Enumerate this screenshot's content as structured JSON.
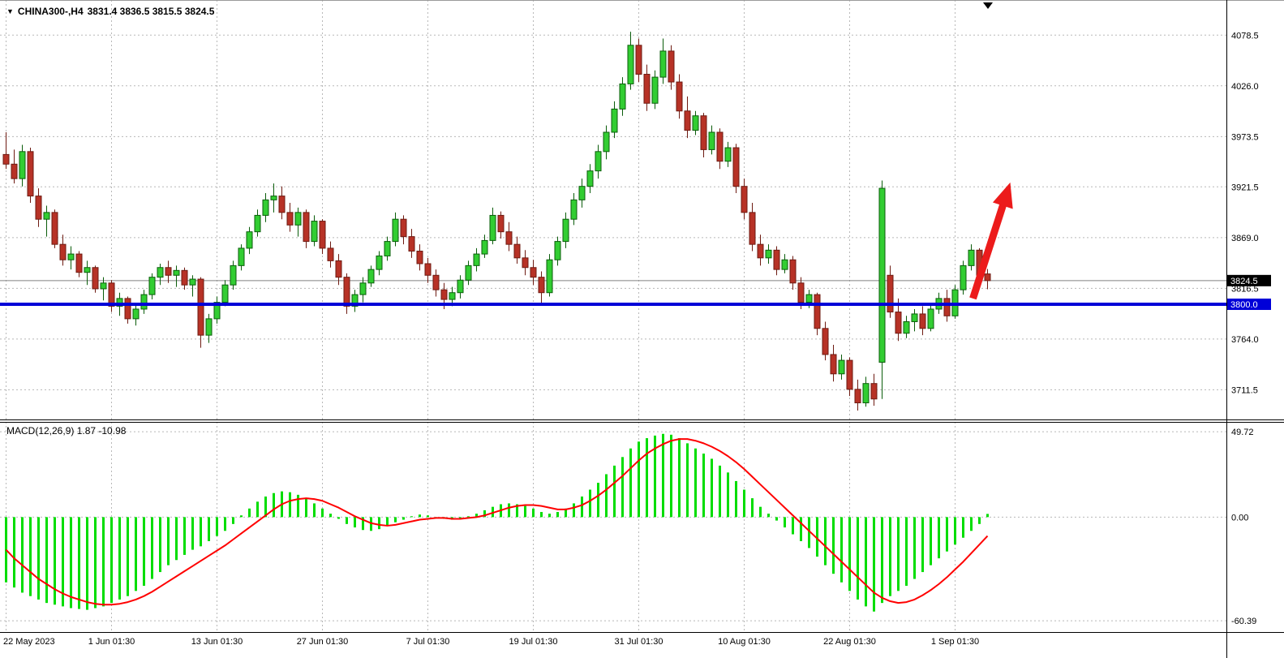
{
  "window": {
    "title": "CHINA300-,H4 chart window"
  },
  "header": {
    "collapse_icon": "▼",
    "symbol": "CHINA300-,H4",
    "ohlc": "3831.4 3836.5 3815.5 3824.5"
  },
  "macd": {
    "label": "MACD(12,26,9) 1.87 -10.98"
  },
  "colors": {
    "background": "#ffffff",
    "bull": "#32cd32",
    "bull_stroke": "#0b5d0b",
    "bear": "#b73226",
    "bear_stroke": "#6e1b12",
    "histogram": "#00dd00",
    "signal": "#ff0000",
    "support_line": "#0000d8",
    "arrow": "#ec1b1b",
    "grid": "#b8b8b8",
    "separator": "#000000",
    "badge_current_bg": "#000000",
    "badge_support_bg": "#0000d8",
    "axis_text": "#000000"
  },
  "axis": {
    "price_ticks": [
      "4078.5",
      "4026.0",
      "3973.5",
      "3921.5",
      "3869.0",
      "3816.5",
      "3764.0",
      "3711.5"
    ],
    "price_tick_values": [
      4078.5,
      4026.0,
      3973.5,
      3921.5,
      3869.0,
      3816.5,
      3764.0,
      3711.5
    ],
    "macd_ticks": [
      "49.72",
      "0.00",
      "-60.39"
    ],
    "macd_tick_values": [
      49.72,
      0,
      -60.39
    ],
    "current_price_badge": "3824.5",
    "support_price_badge": "3800.0"
  },
  "chart_data": [
    {
      "type": "candlestick",
      "title": "CHINA300-,H4",
      "symbol": "CHINA300-",
      "timeframe": "H4",
      "ylim": [
        3685,
        4093
      ],
      "x_labels": [
        "22 May 2023",
        "1 Jun 01:30",
        "13 Jun 01:30",
        "27 Jun 01:30",
        "7 Jul 01:30",
        "19 Jul 01:30",
        "31 Jul 01:30",
        "10 Aug 01:30",
        "22 Aug 01:30",
        "1 Sep 01:30"
      ],
      "x_label_indices": [
        0,
        13,
        26,
        39,
        52,
        65,
        78,
        91,
        104,
        117
      ],
      "candles_ohlc": [
        [
          3955,
          3978,
          3940,
          3945
        ],
        [
          3945,
          3960,
          3925,
          3930
        ],
        [
          3930,
          3965,
          3922,
          3958
        ],
        [
          3958,
          3962,
          3905,
          3912
        ],
        [
          3912,
          3920,
          3880,
          3888
        ],
        [
          3888,
          3902,
          3870,
          3895
        ],
        [
          3895,
          3898,
          3858,
          3862
        ],
        [
          3862,
          3872,
          3840,
          3846
        ],
        [
          3846,
          3860,
          3836,
          3852
        ],
        [
          3852,
          3855,
          3828,
          3833
        ],
        [
          3833,
          3845,
          3820,
          3838
        ],
        [
          3838,
          3840,
          3812,
          3816
        ],
        [
          3816,
          3828,
          3804,
          3822
        ],
        [
          3822,
          3825,
          3792,
          3798
        ],
        [
          3798,
          3812,
          3788,
          3806
        ],
        [
          3806,
          3808,
          3780,
          3785
        ],
        [
          3785,
          3800,
          3778,
          3795
        ],
        [
          3795,
          3815,
          3790,
          3810
        ],
        [
          3810,
          3832,
          3805,
          3828
        ],
        [
          3828,
          3842,
          3820,
          3838
        ],
        [
          3838,
          3845,
          3822,
          3830
        ],
        [
          3830,
          3840,
          3818,
          3835
        ],
        [
          3835,
          3838,
          3815,
          3820
        ],
        [
          3820,
          3830,
          3808,
          3826
        ],
        [
          3826,
          3828,
          3755,
          3768
        ],
        [
          3768,
          3790,
          3760,
          3785
        ],
        [
          3785,
          3808,
          3780,
          3802
        ],
        [
          3802,
          3825,
          3798,
          3820
        ],
        [
          3820,
          3845,
          3815,
          3840
        ],
        [
          3840,
          3862,
          3835,
          3858
        ],
        [
          3858,
          3880,
          3852,
          3875
        ],
        [
          3875,
          3898,
          3870,
          3892
        ],
        [
          3892,
          3915,
          3885,
          3908
        ],
        [
          3908,
          3925,
          3895,
          3912
        ],
        [
          3912,
          3922,
          3888,
          3895
        ],
        [
          3895,
          3905,
          3875,
          3882
        ],
        [
          3882,
          3900,
          3870,
          3895
        ],
        [
          3895,
          3898,
          3858,
          3865
        ],
        [
          3865,
          3892,
          3860,
          3886
        ],
        [
          3886,
          3888,
          3852,
          3858
        ],
        [
          3858,
          3865,
          3838,
          3845
        ],
        [
          3845,
          3852,
          3820,
          3828
        ],
        [
          3828,
          3832,
          3790,
          3798
        ],
        [
          3798,
          3815,
          3792,
          3810
        ],
        [
          3810,
          3828,
          3802,
          3822
        ],
        [
          3822,
          3840,
          3818,
          3836
        ],
        [
          3836,
          3855,
          3830,
          3850
        ],
        [
          3850,
          3870,
          3845,
          3865
        ],
        [
          3865,
          3895,
          3860,
          3888
        ],
        [
          3888,
          3892,
          3862,
          3870
        ],
        [
          3870,
          3878,
          3848,
          3855
        ],
        [
          3855,
          3862,
          3835,
          3842
        ],
        [
          3842,
          3848,
          3822,
          3830
        ],
        [
          3830,
          3836,
          3808,
          3815
        ],
        [
          3815,
          3822,
          3795,
          3805
        ],
        [
          3805,
          3818,
          3798,
          3812
        ],
        [
          3812,
          3830,
          3806,
          3825
        ],
        [
          3825,
          3845,
          3820,
          3840
        ],
        [
          3840,
          3858,
          3834,
          3852
        ],
        [
          3852,
          3872,
          3848,
          3866
        ],
        [
          3866,
          3900,
          3862,
          3892
        ],
        [
          3892,
          3896,
          3868,
          3875
        ],
        [
          3875,
          3885,
          3855,
          3862
        ],
        [
          3862,
          3870,
          3842,
          3848
        ],
        [
          3848,
          3856,
          3830,
          3838
        ],
        [
          3838,
          3846,
          3820,
          3828
        ],
        [
          3828,
          3834,
          3800,
          3812
        ],
        [
          3812,
          3852,
          3808,
          3846
        ],
        [
          3846,
          3870,
          3840,
          3865
        ],
        [
          3865,
          3895,
          3858,
          3888
        ],
        [
          3888,
          3915,
          3882,
          3908
        ],
        [
          3908,
          3930,
          3900,
          3922
        ],
        [
          3922,
          3945,
          3915,
          3938
        ],
        [
          3938,
          3965,
          3930,
          3958
        ],
        [
          3958,
          3985,
          3950,
          3978
        ],
        [
          3978,
          4010,
          3972,
          4002
        ],
        [
          4002,
          4035,
          3995,
          4028
        ],
        [
          4028,
          4082,
          4022,
          4068
        ],
        [
          4068,
          4075,
          4030,
          4038
        ],
        [
          4038,
          4048,
          4000,
          4008
        ],
        [
          4008,
          4042,
          4002,
          4035
        ],
        [
          4035,
          4075,
          4028,
          4062
        ],
        [
          4062,
          4068,
          4022,
          4030
        ],
        [
          4030,
          4038,
          3992,
          4000
        ],
        [
          4000,
          4015,
          3972,
          3980
        ],
        [
          3980,
          4000,
          3975,
          3995
        ],
        [
          3995,
          3998,
          3952,
          3960
        ],
        [
          3960,
          3985,
          3955,
          3978
        ],
        [
          3978,
          3982,
          3940,
          3948
        ],
        [
          3948,
          3968,
          3942,
          3962
        ],
        [
          3962,
          3966,
          3915,
          3922
        ],
        [
          3922,
          3930,
          3888,
          3895
        ],
        [
          3895,
          3905,
          3855,
          3862
        ],
        [
          3862,
          3872,
          3840,
          3848
        ],
        [
          3848,
          3862,
          3842,
          3856
        ],
        [
          3856,
          3860,
          3830,
          3836
        ],
        [
          3836,
          3852,
          3832,
          3846
        ],
        [
          3846,
          3850,
          3815,
          3822
        ],
        [
          3822,
          3828,
          3795,
          3802
        ],
        [
          3802,
          3815,
          3796,
          3810
        ],
        [
          3810,
          3812,
          3768,
          3775
        ],
        [
          3775,
          3782,
          3742,
          3748
        ],
        [
          3748,
          3758,
          3720,
          3728
        ],
        [
          3728,
          3748,
          3722,
          3742
        ],
        [
          3742,
          3745,
          3705,
          3712
        ],
        [
          3712,
          3722,
          3690,
          3698
        ],
        [
          3698,
          3725,
          3694,
          3718
        ],
        [
          3718,
          3728,
          3695,
          3702
        ],
        [
          3740,
          3928,
          3702,
          3920
        ],
        [
          3830,
          3840,
          3786,
          3792
        ],
        [
          3792,
          3806,
          3762,
          3770
        ],
        [
          3770,
          3788,
          3765,
          3782
        ],
        [
          3782,
          3795,
          3772,
          3790
        ],
        [
          3790,
          3798,
          3768,
          3775
        ],
        [
          3775,
          3800,
          3772,
          3795
        ],
        [
          3795,
          3812,
          3790,
          3806
        ],
        [
          3806,
          3815,
          3782,
          3788
        ],
        [
          3788,
          3820,
          3785,
          3815
        ],
        [
          3815,
          3845,
          3810,
          3840
        ],
        [
          3840,
          3862,
          3835,
          3856
        ],
        [
          3856,
          3858,
          3824,
          3830
        ],
        [
          3831.4,
          3836.5,
          3815.5,
          3824.5
        ]
      ],
      "annotations": {
        "support_line_price": 3800.0,
        "current_price": 3824.5,
        "arrow": {
          "direction": "up",
          "from": {
            "index": 119.2,
            "price": 3806
          },
          "to": {
            "index": 123.8,
            "price": 3926
          }
        }
      }
    },
    {
      "type": "bar",
      "name": "MACD(12,26,9)",
      "ylim": [
        -66,
        55
      ],
      "last_main": 1.87,
      "last_signal": -10.98,
      "values": [
        -38,
        -41,
        -44,
        -46,
        -48,
        -50,
        -51,
        -52,
        -53,
        -53.5,
        -54,
        -53,
        -52,
        -50,
        -48,
        -46,
        -43,
        -40,
        -36,
        -32,
        -28,
        -25,
        -22,
        -19,
        -17,
        -14,
        -11,
        -8,
        -4,
        1,
        5,
        9,
        12,
        14,
        15,
        14.5,
        13,
        11,
        8,
        5,
        2,
        -1,
        -4,
        -6,
        -7.5,
        -8,
        -7,
        -5,
        -3,
        -1.5,
        0.5,
        1.5,
        1,
        0,
        -1,
        -1.5,
        -1,
        0.5,
        2,
        4,
        6,
        7.5,
        8,
        7.5,
        6.5,
        5,
        3,
        2,
        3,
        5,
        8,
        12,
        16,
        20,
        25,
        30,
        35,
        40,
        44,
        46,
        47.5,
        48.5,
        48,
        46,
        43,
        40,
        37,
        34,
        30,
        26,
        21,
        16,
        11,
        6,
        2,
        -2,
        -6,
        -10,
        -14,
        -18,
        -23,
        -28,
        -33,
        -38,
        -43,
        -48,
        -52,
        -55,
        -50,
        -46,
        -43,
        -40,
        -36,
        -32,
        -28,
        -24,
        -20,
        -16,
        -12,
        -8,
        -4,
        1.87
      ],
      "signal": [
        -19,
        -24,
        -28,
        -32,
        -36,
        -39,
        -42,
        -44.5,
        -46.5,
        -48,
        -49.5,
        -50.5,
        -51,
        -51,
        -50.5,
        -49.5,
        -48,
        -46,
        -43.5,
        -40.5,
        -37.5,
        -34.5,
        -31.5,
        -28.5,
        -25.5,
        -22.5,
        -19.5,
        -16.5,
        -13,
        -9.5,
        -6,
        -2.5,
        1,
        4.5,
        7.5,
        9.5,
        10.5,
        11,
        10.5,
        9.5,
        7.5,
        5.5,
        3,
        0.5,
        -1.5,
        -3.5,
        -4.5,
        -5,
        -4.5,
        -3.5,
        -2.5,
        -1.5,
        -1,
        -0.5,
        -0.5,
        -1,
        -1,
        -0.5,
        0,
        1,
        2.5,
        4,
        5.5,
        6.5,
        7,
        7,
        6.5,
        5.5,
        4.5,
        4.5,
        5.5,
        7,
        9.5,
        12.5,
        16,
        20,
        24,
        28.5,
        33,
        37,
        40,
        42.5,
        44.5,
        45.5,
        45.5,
        44.5,
        43,
        41,
        38.5,
        35.5,
        32,
        28,
        23.5,
        19,
        14.5,
        10,
        5.5,
        1,
        -3.5,
        -8,
        -12.5,
        -17,
        -21.5,
        -26,
        -30.5,
        -35,
        -39.5,
        -44,
        -47,
        -49,
        -50,
        -49.5,
        -48,
        -45.5,
        -42.5,
        -39,
        -35,
        -30.5,
        -26,
        -21,
        -16,
        -10.98
      ]
    }
  ]
}
